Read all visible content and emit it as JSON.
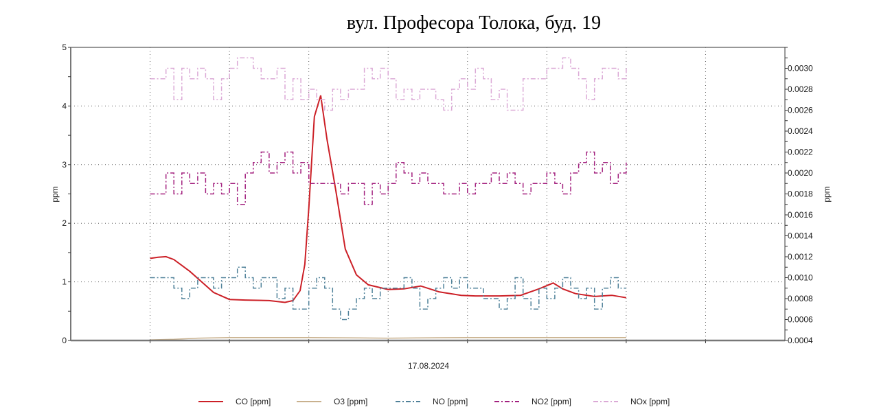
{
  "chart_data": {
    "type": "line",
    "title": "вул. Професора Толока, буд. 19",
    "xlabel": "17.08.2024",
    "ylabel": "ppm",
    "ylabel_right": "ppm",
    "xlim": [
      -1,
      8
    ],
    "ylim": [
      0,
      5
    ],
    "ylim_right": [
      0.0004,
      0.0032
    ],
    "y_ticks": [
      "0",
      "1",
      "2",
      "3",
      "4",
      "5"
    ],
    "y_right_ticks": [
      "0.0004",
      "0.0006",
      "0.0008",
      "0.0010",
      "0.0012",
      "0.0014",
      "0.0016",
      "0.0018",
      "0.0020",
      "0.0022",
      "0.0024",
      "0.0026",
      "0.0028",
      "0.0030"
    ],
    "grid": true,
    "legend_position": "bottom",
    "series": [
      {
        "name": "CO [ppm]",
        "axis": "left",
        "color": "#cc2027",
        "style": "solid",
        "points": [
          [
            0,
            1.4
          ],
          [
            0.1,
            1.42
          ],
          [
            0.2,
            1.43
          ],
          [
            0.3,
            1.38
          ],
          [
            0.5,
            1.18
          ],
          [
            0.65,
            1.0
          ],
          [
            0.8,
            0.82
          ],
          [
            1.0,
            0.7
          ],
          [
            1.2,
            0.69
          ],
          [
            1.5,
            0.68
          ],
          [
            1.7,
            0.65
          ],
          [
            1.8,
            0.68
          ],
          [
            1.89,
            0.85
          ],
          [
            1.95,
            1.3
          ],
          [
            2.0,
            2.26
          ],
          [
            2.07,
            3.82
          ],
          [
            2.15,
            4.18
          ],
          [
            2.23,
            3.43
          ],
          [
            2.34,
            2.56
          ],
          [
            2.46,
            1.56
          ],
          [
            2.6,
            1.12
          ],
          [
            2.75,
            0.95
          ],
          [
            3.0,
            0.87
          ],
          [
            3.2,
            0.88
          ],
          [
            3.41,
            0.93
          ],
          [
            3.64,
            0.83
          ],
          [
            3.92,
            0.77
          ],
          [
            4.1,
            0.76
          ],
          [
            4.4,
            0.76
          ],
          [
            4.67,
            0.77
          ],
          [
            4.9,
            0.88
          ],
          [
            5.08,
            0.98
          ],
          [
            5.2,
            0.88
          ],
          [
            5.36,
            0.8
          ],
          [
            5.6,
            0.75
          ],
          [
            5.82,
            0.77
          ],
          [
            6.0,
            0.73
          ]
        ]
      },
      {
        "name": "O3 [ppm]",
        "axis": "left",
        "color": "#c9b18e",
        "style": "solid",
        "points": [
          [
            0,
            0.01
          ],
          [
            0.3,
            0.02
          ],
          [
            0.6,
            0.04
          ],
          [
            1.0,
            0.05
          ],
          [
            2.0,
            0.05
          ],
          [
            3.0,
            0.04
          ],
          [
            4.0,
            0.05
          ],
          [
            5.0,
            0.05
          ],
          [
            6.0,
            0.05
          ]
        ]
      },
      {
        "name": "NO [ppm]",
        "axis": "right",
        "color": "#4f8199",
        "style": "dashdot",
        "x_start": 0,
        "x_step": 0.1,
        "values": [
          0.001,
          0.001,
          0.001,
          0.0009,
          0.0008,
          0.0009,
          0.001,
          0.001,
          0.0009,
          0.001,
          0.001,
          0.0011,
          0.001,
          0.0009,
          0.001,
          0.001,
          0.0008,
          0.0009,
          0.0007,
          0.0007,
          0.0009,
          0.001,
          0.0009,
          0.0007,
          0.0006,
          0.0007,
          0.0008,
          0.0009,
          0.0008,
          0.0009,
          0.0009,
          0.0009,
          0.001,
          0.0009,
          0.0007,
          0.0008,
          0.0009,
          0.001,
          0.0009,
          0.001,
          0.0009,
          0.0009,
          0.0008,
          0.0008,
          0.0007,
          0.0008,
          0.001,
          0.0008,
          0.0007,
          0.0009,
          0.0008,
          0.0009,
          0.001,
          0.0009,
          0.0008,
          0.0009,
          0.0007,
          0.0009,
          0.001,
          0.0009,
          0.0009
        ]
      },
      {
        "name": "NO2 [ppm]",
        "axis": "right",
        "color": "#a3217f",
        "style": "dashdot",
        "x_start": 0,
        "x_step": 0.1,
        "values": [
          0.0018,
          0.0018,
          0.002,
          0.0018,
          0.002,
          0.0019,
          0.002,
          0.0018,
          0.0019,
          0.0018,
          0.0019,
          0.0017,
          0.002,
          0.0021,
          0.0022,
          0.002,
          0.0021,
          0.0022,
          0.002,
          0.0021,
          0.0019,
          0.0019,
          0.0019,
          0.0019,
          0.0018,
          0.0019,
          0.0019,
          0.0017,
          0.0019,
          0.0018,
          0.0019,
          0.0021,
          0.002,
          0.0019,
          0.002,
          0.0019,
          0.0019,
          0.0018,
          0.0018,
          0.0019,
          0.0018,
          0.0019,
          0.0019,
          0.002,
          0.0019,
          0.002,
          0.0019,
          0.0018,
          0.0019,
          0.0019,
          0.002,
          0.0019,
          0.0018,
          0.002,
          0.0021,
          0.0022,
          0.002,
          0.0021,
          0.0019,
          0.002,
          0.0021
        ]
      },
      {
        "name": "NOx [ppm]",
        "axis": "right",
        "color": "#dba9d6",
        "style": "dashdot",
        "x_start": 0,
        "x_step": 0.1,
        "values": [
          0.0029,
          0.0029,
          0.003,
          0.0027,
          0.003,
          0.0029,
          0.003,
          0.0029,
          0.0027,
          0.0029,
          0.003,
          0.0031,
          0.0031,
          0.003,
          0.0029,
          0.0029,
          0.003,
          0.0027,
          0.0029,
          0.0027,
          0.0028,
          0.0027,
          0.0026,
          0.0028,
          0.0027,
          0.0028,
          0.0028,
          0.003,
          0.0029,
          0.003,
          0.0029,
          0.0027,
          0.0028,
          0.0027,
          0.0028,
          0.0028,
          0.0027,
          0.0026,
          0.0028,
          0.0029,
          0.0028,
          0.003,
          0.0029,
          0.0027,
          0.0028,
          0.0026,
          0.0026,
          0.0029,
          0.0029,
          0.0029,
          0.003,
          0.003,
          0.0031,
          0.003,
          0.0029,
          0.0027,
          0.0029,
          0.003,
          0.003,
          0.0029,
          0.003
        ]
      }
    ]
  }
}
